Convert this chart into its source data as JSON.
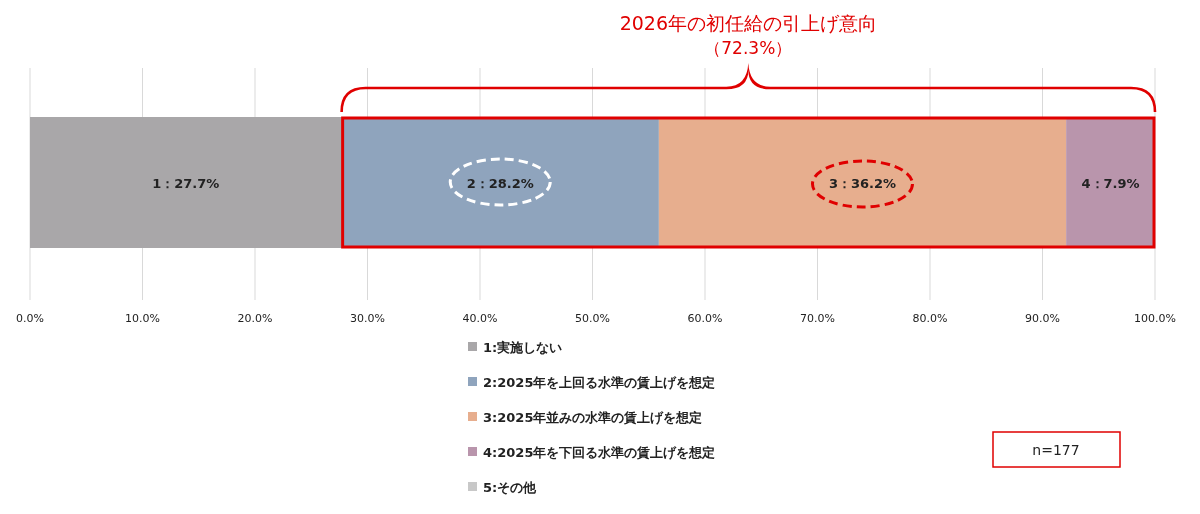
{
  "chart_data": {
    "type": "bar",
    "orientation": "horizontal",
    "stacked": true,
    "title": "2026年の初任給の引上げ意向",
    "subtitle": "（72.3%）",
    "categories": [
      null
    ],
    "series": [
      {
        "name": "1:実施しない",
        "color": "#a9a7a9",
        "values": [
          27.7
        ],
        "value_labels": [
          "1：27.7%"
        ]
      },
      {
        "name": "2:2025年を上回る水準の賃上げを想定",
        "color": "#8fa4bd",
        "values": [
          28.2
        ],
        "value_labels": [
          "2：28.2%"
        ]
      },
      {
        "name": "3:2025年並みの水準の賃上げを想定",
        "color": "#e7ae8e",
        "values": [
          36.2
        ],
        "value_labels": [
          "3：36.2%"
        ]
      },
      {
        "name": "4:2025年を下回る水準の賃上げを想定",
        "color": "#b995ac",
        "values": [
          7.9
        ],
        "value_labels": [
          "4：7.9%"
        ]
      },
      {
        "name": "5:その他",
        "color": "#c8c8c8",
        "values": [
          0
        ],
        "value_labels": [
          null
        ]
      }
    ],
    "xlim": [
      0,
      100
    ],
    "xticks": [
      {
        "value": 0,
        "label": "0.0%"
      },
      {
        "value": 10,
        "label": "10.0%"
      },
      {
        "value": 20,
        "label": "20.0%"
      },
      {
        "value": 30,
        "label": "30.0%"
      },
      {
        "value": 40,
        "label": "40.0%"
      },
      {
        "value": 50,
        "label": "50.0%"
      },
      {
        "value": 60,
        "label": "60.0%"
      },
      {
        "value": 70,
        "label": "70.0%"
      },
      {
        "value": 80,
        "label": "80.0%"
      },
      {
        "value": 90,
        "label": "90.0%"
      },
      {
        "value": 100,
        "label": "100.0%"
      }
    ],
    "grid": "x",
    "legend": "bottom",
    "annotations": [
      "n=177"
    ]
  }
}
